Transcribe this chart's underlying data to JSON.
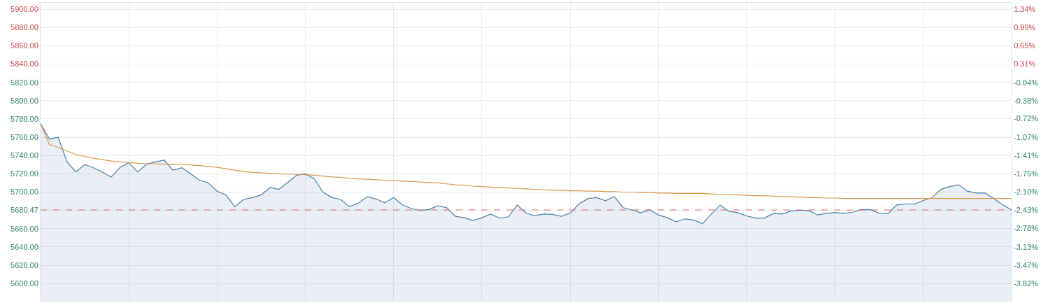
{
  "chart_data": {
    "type": "line",
    "categories": [
      null,
      null,
      null,
      null,
      null,
      null,
      null,
      null,
      null,
      null,
      null,
      null,
      null,
      null,
      null,
      null,
      null,
      null,
      null,
      null,
      null,
      null,
      null,
      null,
      null,
      null,
      null,
      null,
      null,
      null,
      null,
      null,
      null,
      null,
      null,
      null,
      null,
      null,
      null,
      null,
      null,
      null,
      null,
      null,
      null,
      null,
      null,
      null,
      null,
      null,
      null,
      null,
      null,
      null,
      null,
      null,
      null,
      null,
      null,
      null,
      null,
      null,
      null,
      null,
      null,
      null,
      null,
      null,
      null,
      null,
      null,
      null,
      null,
      null,
      null,
      null,
      null,
      null,
      null,
      null,
      null,
      null,
      null,
      null,
      null,
      null,
      null,
      null,
      null,
      null,
      null,
      null,
      null,
      null,
      null,
      null,
      null,
      null,
      null,
      null,
      null,
      null,
      null,
      null,
      null,
      null,
      null,
      null,
      null,
      null,
      null
    ],
    "series": [
      {
        "type": "area",
        "color": "#4a7fa8",
        "values": [
          5775,
          5758,
          5760,
          5733,
          5722,
          5730,
          5726.6,
          5722,
          5716.4,
          5727,
          5732,
          5722,
          5730.5,
          5733,
          5735,
          5724,
          5726.6,
          5720,
          5713,
          5710,
          5701,
          5697,
          5684,
          5692,
          5694,
          5697,
          5705,
          5703,
          5710.5,
          5718.5,
          5720,
          5714.6,
          5700,
          5694,
          5692,
          5684,
          5688,
          5695,
          5692.5,
          5688.3,
          5694,
          5686,
          5682,
          5679.8,
          5681,
          5685,
          5683,
          5673.5,
          5672,
          5669,
          5672,
          5676,
          5671.5,
          5673,
          5686,
          5677,
          5674.2,
          5676,
          5675.6,
          5673.5,
          5677,
          5687,
          5693,
          5693.9,
          5690.5,
          5695,
          5683,
          5680.5,
          5677.3,
          5680.5,
          5675,
          5672,
          5667.5,
          5670.7,
          5669.5,
          5665.5,
          5676,
          5685.7,
          5679,
          5677.5,
          5674,
          5671.6,
          5671.6,
          5676.5,
          5676,
          5679.2,
          5680,
          5680,
          5675,
          5676.5,
          5677.7,
          5676.5,
          5678,
          5681,
          5680.8,
          5677,
          5676.5,
          5686,
          5687,
          5687,
          5690.8,
          5694,
          5703,
          5706,
          5708,
          5701,
          5699,
          5699,
          5693,
          5686,
          5680.47
        ]
      },
      {
        "color": "#d9984a",
        "values": [
          5775,
          5752,
          5749,
          5745,
          5741,
          5739,
          5737,
          5735.5,
          5734,
          5733,
          5732.5,
          5731.5,
          5731,
          5731,
          5730.5,
          5730.5,
          5730.5,
          5729.5,
          5729,
          5728,
          5727,
          5725.5,
          5724,
          5722.5,
          5721.5,
          5721,
          5720.5,
          5720,
          5719.5,
          5719.5,
          5719,
          5718.5,
          5717.5,
          5716.5,
          5716,
          5715,
          5714.5,
          5714,
          5713.5,
          5713,
          5712.5,
          5712,
          5711.5,
          5711,
          5710.5,
          5710,
          5709,
          5708,
          5707.5,
          5706.5,
          5706,
          5705.5,
          5705,
          5704.5,
          5704,
          5703.5,
          5703,
          5702.5,
          5702,
          5702,
          5701.5,
          5701.5,
          5701,
          5701,
          5700.5,
          5700.5,
          5700,
          5700,
          5699.5,
          5699.5,
          5699,
          5699,
          5698.5,
          5698.5,
          5698.5,
          5698.5,
          5698,
          5697.5,
          5697,
          5697,
          5696.5,
          5696,
          5696,
          5695.5,
          5695,
          5695,
          5694.5,
          5694,
          5694,
          5693.5,
          5693.5,
          5693,
          5693,
          5693,
          5693,
          5693,
          5693,
          5693,
          5693,
          5693,
          5693,
          5693,
          5693,
          5693,
          5693,
          5693,
          5693,
          5693,
          5693,
          5693,
          5693
        ]
      }
    ],
    "ylim": [
      5581,
      5907
    ],
    "yticks": [
      {
        "value": 5900,
        "label": "5900.00"
      },
      {
        "value": 5880,
        "label": "5880.00"
      },
      {
        "value": 5860,
        "label": "5860.00"
      },
      {
        "value": 5840,
        "label": "5840.00"
      },
      {
        "value": 5820,
        "label": "5820.00"
      },
      {
        "value": 5800,
        "label": "5800.00"
      },
      {
        "value": 5780,
        "label": "5780.00"
      },
      {
        "value": 5760,
        "label": "5760.00"
      },
      {
        "value": 5740,
        "label": "5740.00"
      },
      {
        "value": 5720,
        "label": "5720.00"
      },
      {
        "value": 5700,
        "label": "5700.00"
      },
      {
        "value": 5680.47,
        "label": "5680.47"
      },
      {
        "value": 5660,
        "label": "5660.00"
      },
      {
        "value": 5640,
        "label": "5640.00"
      },
      {
        "value": 5620,
        "label": "5620.00"
      },
      {
        "value": 5600,
        "label": "5600.00"
      }
    ],
    "y2lim": [
      -4.143,
      1.4565
    ],
    "y2ticks": [
      {
        "value": 1.34,
        "label": "1.34%"
      },
      {
        "value": 0.99,
        "label": "0.99%"
      },
      {
        "value": 0.65,
        "label": "0.65%"
      },
      {
        "value": 0.31,
        "label": "0.31%"
      },
      {
        "value": -0.04,
        "label": "-0.04%"
      },
      {
        "value": -0.38,
        "label": "-0.38%"
      },
      {
        "value": -0.72,
        "label": "-0.72%"
      },
      {
        "value": -1.07,
        "label": "-1.07%"
      },
      {
        "value": -1.41,
        "label": "-1.41%"
      },
      {
        "value": -1.75,
        "label": "-1.75%"
      },
      {
        "value": -2.1,
        "label": "-2.10%"
      },
      {
        "value": -2.43,
        "label": "-2.43%"
      },
      {
        "value": -2.78,
        "label": "-2.78%"
      },
      {
        "value": -3.13,
        "label": "-3.13%"
      },
      {
        "value": -3.47,
        "label": "-3.47%"
      },
      {
        "value": -3.82,
        "label": "-3.82%"
      }
    ],
    "ref_lines": [
      {
        "axis": "y",
        "value": 5680.47,
        "color": "#e06a6a",
        "line_style": "dashed"
      }
    ],
    "grid": true,
    "tick_labels": "y",
    "marker": "none",
    "line_style": "solid"
  }
}
